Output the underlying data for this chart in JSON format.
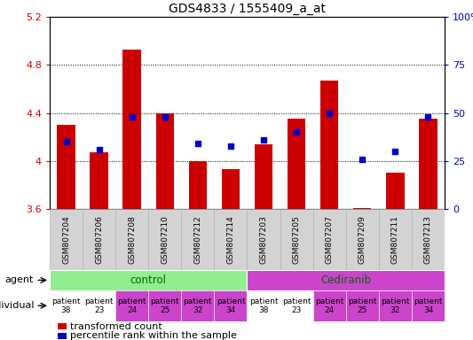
{
  "title": "GDS4833 / 1555409_a_at",
  "samples": [
    "GSM807204",
    "GSM807206",
    "GSM807208",
    "GSM807210",
    "GSM807212",
    "GSM807214",
    "GSM807203",
    "GSM807205",
    "GSM807207",
    "GSM807209",
    "GSM807211",
    "GSM807213"
  ],
  "transformed_count": [
    4.3,
    4.07,
    4.93,
    4.4,
    4.0,
    3.93,
    4.14,
    4.35,
    4.67,
    3.61,
    3.9,
    4.35
  ],
  "percentile_rank": [
    35,
    31,
    48,
    48,
    34,
    33,
    36,
    40,
    50,
    26,
    30,
    48
  ],
  "ylim_left": [
    3.6,
    5.2
  ],
  "ylim_right": [
    0,
    100
  ],
  "yticks_left": [
    3.6,
    4.0,
    4.4,
    4.8,
    5.2
  ],
  "ytick_labels_left": [
    "3.6",
    "4",
    "4.4",
    "4.8",
    "5.2"
  ],
  "yticks_right": [
    0,
    25,
    50,
    75,
    100
  ],
  "ytick_labels_right": [
    "0",
    "25",
    "50",
    "75",
    "100%"
  ],
  "control_color": "#90EE90",
  "cediranib_color": "#CC44CC",
  "indiv_colors": [
    "#FFFFFF",
    "#FFFFFF",
    "#CC44CC",
    "#CC44CC",
    "#CC44CC",
    "#CC44CC",
    "#FFFFFF",
    "#FFFFFF",
    "#CC44CC",
    "#CC44CC",
    "#CC44CC",
    "#CC44CC"
  ],
  "bar_color": "#CC0000",
  "dot_color": "#0000CC",
  "base": 3.6,
  "bg_color": "#FFFFFF",
  "plot_bg": "#FFFFFF",
  "tick_label_color_left": "#CC0000",
  "tick_label_color_right": "#0000CC",
  "agent_label_color": "#006600",
  "font_size_title": 10,
  "font_size_ticks": 8,
  "font_size_legend": 8,
  "font_size_sample": 6.5,
  "font_size_agent": 8.5,
  "font_size_indiv": 6.5,
  "font_size_rowlabel": 8,
  "individuals": [
    "patient\n38",
    "patient\n23",
    "patient\n24",
    "patient\n25",
    "patient\n32",
    "patient\n34",
    "patient\n38",
    "patient\n23",
    "patient\n24",
    "patient\n25",
    "patient\n32",
    "patient\n34"
  ]
}
